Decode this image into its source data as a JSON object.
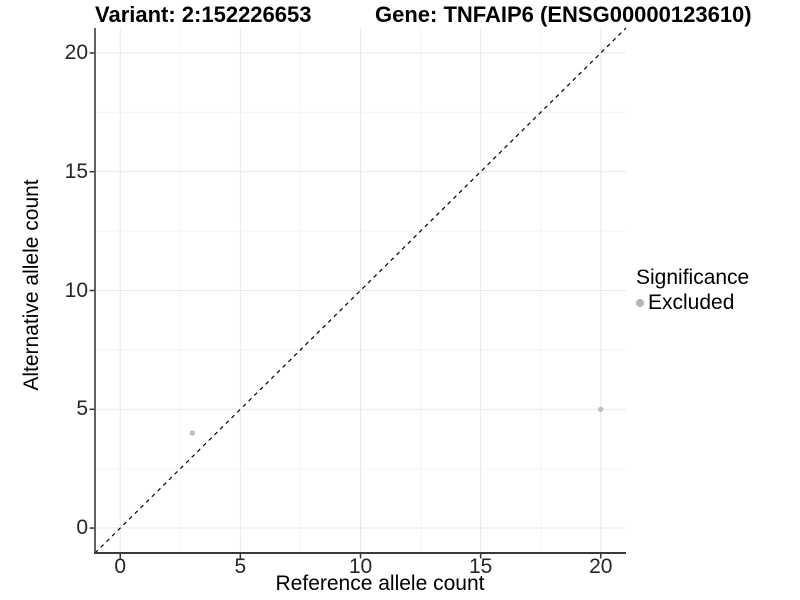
{
  "chart_data": {
    "type": "scatter",
    "title_left": "Variant: 2:152226653",
    "title_right": "Gene: TNFAIP6 (ENSG00000123610)",
    "xlabel": "Reference allele count",
    "ylabel": "Alternative allele count",
    "xlim": [
      -1.05,
      21.05
    ],
    "ylim": [
      -1.05,
      21.05
    ],
    "xticks": [
      0,
      5,
      10,
      15,
      20
    ],
    "yticks": [
      0,
      5,
      10,
      15,
      20
    ],
    "minor_xticks": [
      2.5,
      7.5,
      12.5,
      17.5
    ],
    "minor_yticks": [
      2.5,
      7.5,
      12.5,
      17.5
    ],
    "grid": "major+minor",
    "reference_line": {
      "type": "identity",
      "style": "dashed",
      "color": "#000000"
    },
    "series": [
      {
        "name": "Excluded",
        "color": "#bebebe",
        "points": [
          {
            "x": 3,
            "y": 4
          },
          {
            "x": 20,
            "y": 5
          }
        ]
      }
    ],
    "legend": {
      "title": "Significance",
      "position": "right",
      "items": [
        {
          "label": "Excluded",
          "color": "#b5b5b5"
        }
      ]
    },
    "colors": {
      "background": "#ffffff",
      "grid_major": "#e8e8e8",
      "grid_minor": "#f4f4f4",
      "axis_line": "#3a3a3a",
      "tick_mark": "#333333",
      "tick_label": "#262626",
      "title": "#000000"
    }
  }
}
